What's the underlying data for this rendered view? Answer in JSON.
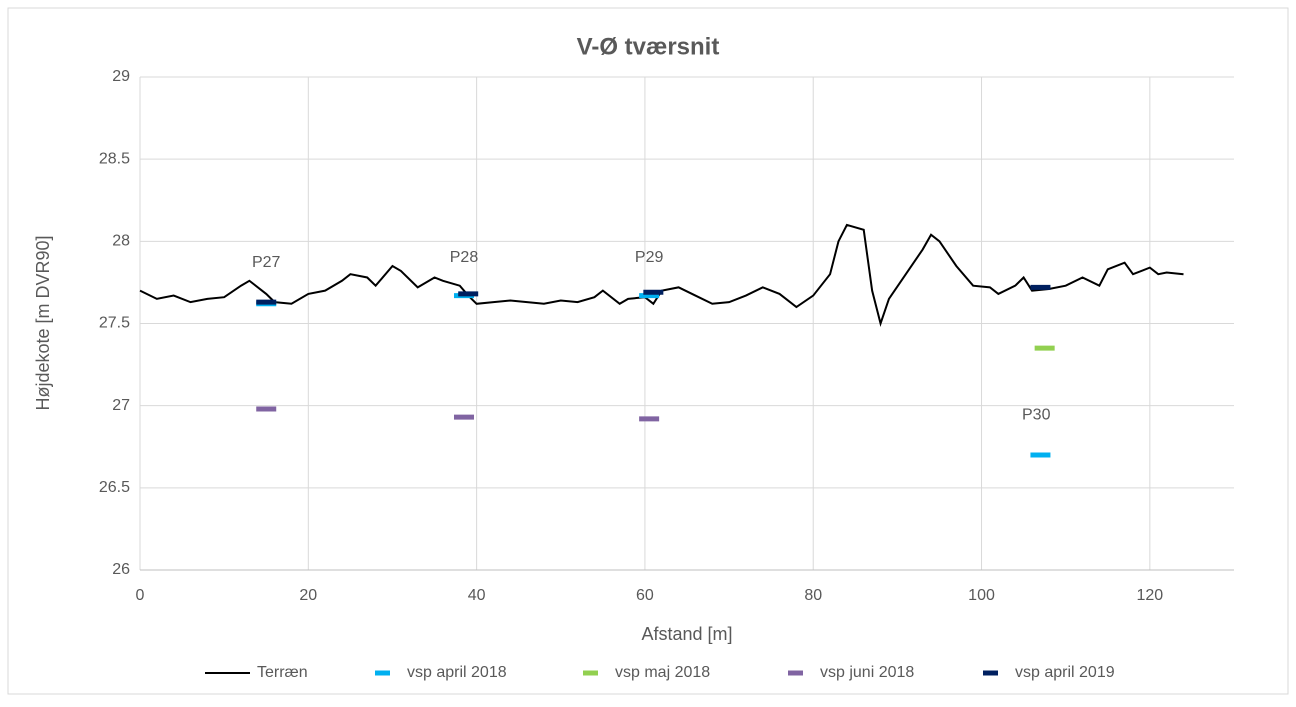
{
  "chart_data": {
    "type": "line",
    "title": "V-Ø tværsnit",
    "x_label": "Afstand [m]",
    "y_label": "Højdekote [m DVR90]",
    "xlim": [
      0,
      130
    ],
    "xticks": [
      0,
      20,
      40,
      60,
      80,
      100,
      120
    ],
    "ylim": [
      26,
      29
    ],
    "yticks": [
      26,
      26.5,
      27,
      27.5,
      28,
      28.5,
      29
    ],
    "grid": true,
    "legend": "bottom",
    "series": [
      {
        "name": "Terræn",
        "color": "#000000",
        "mode": "line",
        "x": [
          0,
          2,
          4,
          6,
          8,
          10,
          12,
          13,
          15,
          16,
          18,
          20,
          22,
          24,
          25,
          27,
          28,
          30,
          31,
          33,
          35,
          36,
          38,
          39,
          40,
          42,
          44,
          46,
          48,
          50,
          52,
          54,
          55,
          57,
          58,
          60,
          61,
          62,
          64,
          66,
          68,
          70,
          72,
          74,
          76,
          78,
          80,
          82,
          83,
          84,
          86,
          87,
          88,
          89,
          91,
          93,
          94,
          95,
          97,
          99,
          101,
          102,
          104,
          105,
          106,
          108,
          110,
          112,
          114,
          115,
          117,
          118,
          120,
          121,
          122,
          124
        ],
        "values": [
          27.7,
          27.65,
          27.67,
          27.63,
          27.65,
          27.66,
          27.73,
          27.76,
          27.68,
          27.63,
          27.62,
          27.68,
          27.7,
          27.76,
          27.8,
          27.78,
          27.73,
          27.85,
          27.82,
          27.72,
          27.78,
          27.76,
          27.73,
          27.67,
          27.62,
          27.63,
          27.64,
          27.63,
          27.62,
          27.64,
          27.63,
          27.66,
          27.7,
          27.62,
          27.65,
          27.66,
          27.62,
          27.7,
          27.72,
          27.67,
          27.62,
          27.63,
          27.67,
          27.72,
          27.68,
          27.6,
          27.67,
          27.8,
          28.0,
          28.1,
          28.07,
          27.7,
          27.5,
          27.65,
          27.8,
          27.95,
          28.04,
          28.0,
          27.85,
          27.73,
          27.72,
          27.68,
          27.73,
          27.78,
          27.7,
          27.71,
          27.73,
          27.78,
          27.73,
          27.83,
          27.87,
          27.8,
          27.84,
          27.8,
          27.81,
          27.8
        ]
      },
      {
        "name": "vsp april 2018",
        "color": "#00b0f0",
        "mode": "marker",
        "x": [
          15,
          38.5,
          60.5,
          107
        ],
        "values": [
          27.62,
          27.67,
          27.67,
          26.7
        ]
      },
      {
        "name": "vsp maj 2018",
        "color": "#92d050",
        "mode": "marker",
        "x": [
          107.5
        ],
        "values": [
          27.35
        ]
      },
      {
        "name": "vsp juni 2018",
        "color": "#8064a2",
        "mode": "marker",
        "x": [
          15,
          38.5,
          60.5
        ],
        "values": [
          26.98,
          26.93,
          26.92
        ]
      },
      {
        "name": "vsp april 2019",
        "color": "#002060",
        "mode": "marker",
        "x": [
          15,
          39,
          61,
          107
        ],
        "values": [
          27.63,
          27.68,
          27.69,
          27.72
        ]
      }
    ],
    "annotations": [
      {
        "text": "P27",
        "x": 15,
        "y": 27.81
      },
      {
        "text": "P28",
        "x": 38.5,
        "y": 27.84
      },
      {
        "text": "P29",
        "x": 60.5,
        "y": 27.84
      },
      {
        "text": "P30",
        "x": 106.5,
        "y": 26.88
      }
    ]
  }
}
